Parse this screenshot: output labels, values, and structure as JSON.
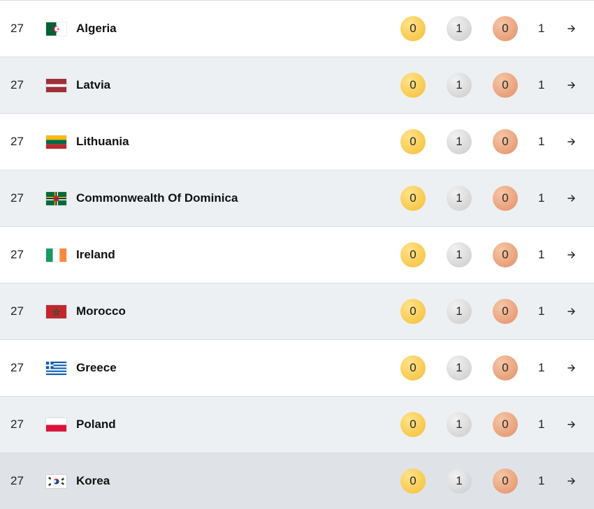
{
  "rows": [
    {
      "rank": "27",
      "country": "Algeria",
      "flag": "algeria-flag-icon",
      "gold": "0",
      "silver": "1",
      "bronze": "0",
      "total": "1"
    },
    {
      "rank": "27",
      "country": "Latvia",
      "flag": "latvia-flag-icon",
      "gold": "0",
      "silver": "1",
      "bronze": "0",
      "total": "1"
    },
    {
      "rank": "27",
      "country": "Lithuania",
      "flag": "lithuania-flag-icon",
      "gold": "0",
      "silver": "1",
      "bronze": "0",
      "total": "1"
    },
    {
      "rank": "27",
      "country": "Commonwealth Of Dominica",
      "flag": "dominica-flag-icon",
      "gold": "0",
      "silver": "1",
      "bronze": "0",
      "total": "1"
    },
    {
      "rank": "27",
      "country": "Ireland",
      "flag": "ireland-flag-icon",
      "gold": "0",
      "silver": "1",
      "bronze": "0",
      "total": "1"
    },
    {
      "rank": "27",
      "country": "Morocco",
      "flag": "morocco-flag-icon",
      "gold": "0",
      "silver": "1",
      "bronze": "0",
      "total": "1"
    },
    {
      "rank": "27",
      "country": "Greece",
      "flag": "greece-flag-icon",
      "gold": "0",
      "silver": "1",
      "bronze": "0",
      "total": "1"
    },
    {
      "rank": "27",
      "country": "Poland",
      "flag": "poland-flag-icon",
      "gold": "0",
      "silver": "1",
      "bronze": "0",
      "total": "1"
    },
    {
      "rank": "27",
      "country": "Korea",
      "flag": "korea-flag-icon",
      "gold": "0",
      "silver": "1",
      "bronze": "0",
      "total": "1"
    }
  ],
  "colors": {
    "gold_medal": "#f7c94e",
    "silver_medal": "#d6d6d6",
    "bronze_medal": "#e8a07a",
    "alt_row": "#edf0f3",
    "hover_row": "#dfe3e7"
  },
  "icons": {
    "row_link": "arrow-right-icon"
  }
}
